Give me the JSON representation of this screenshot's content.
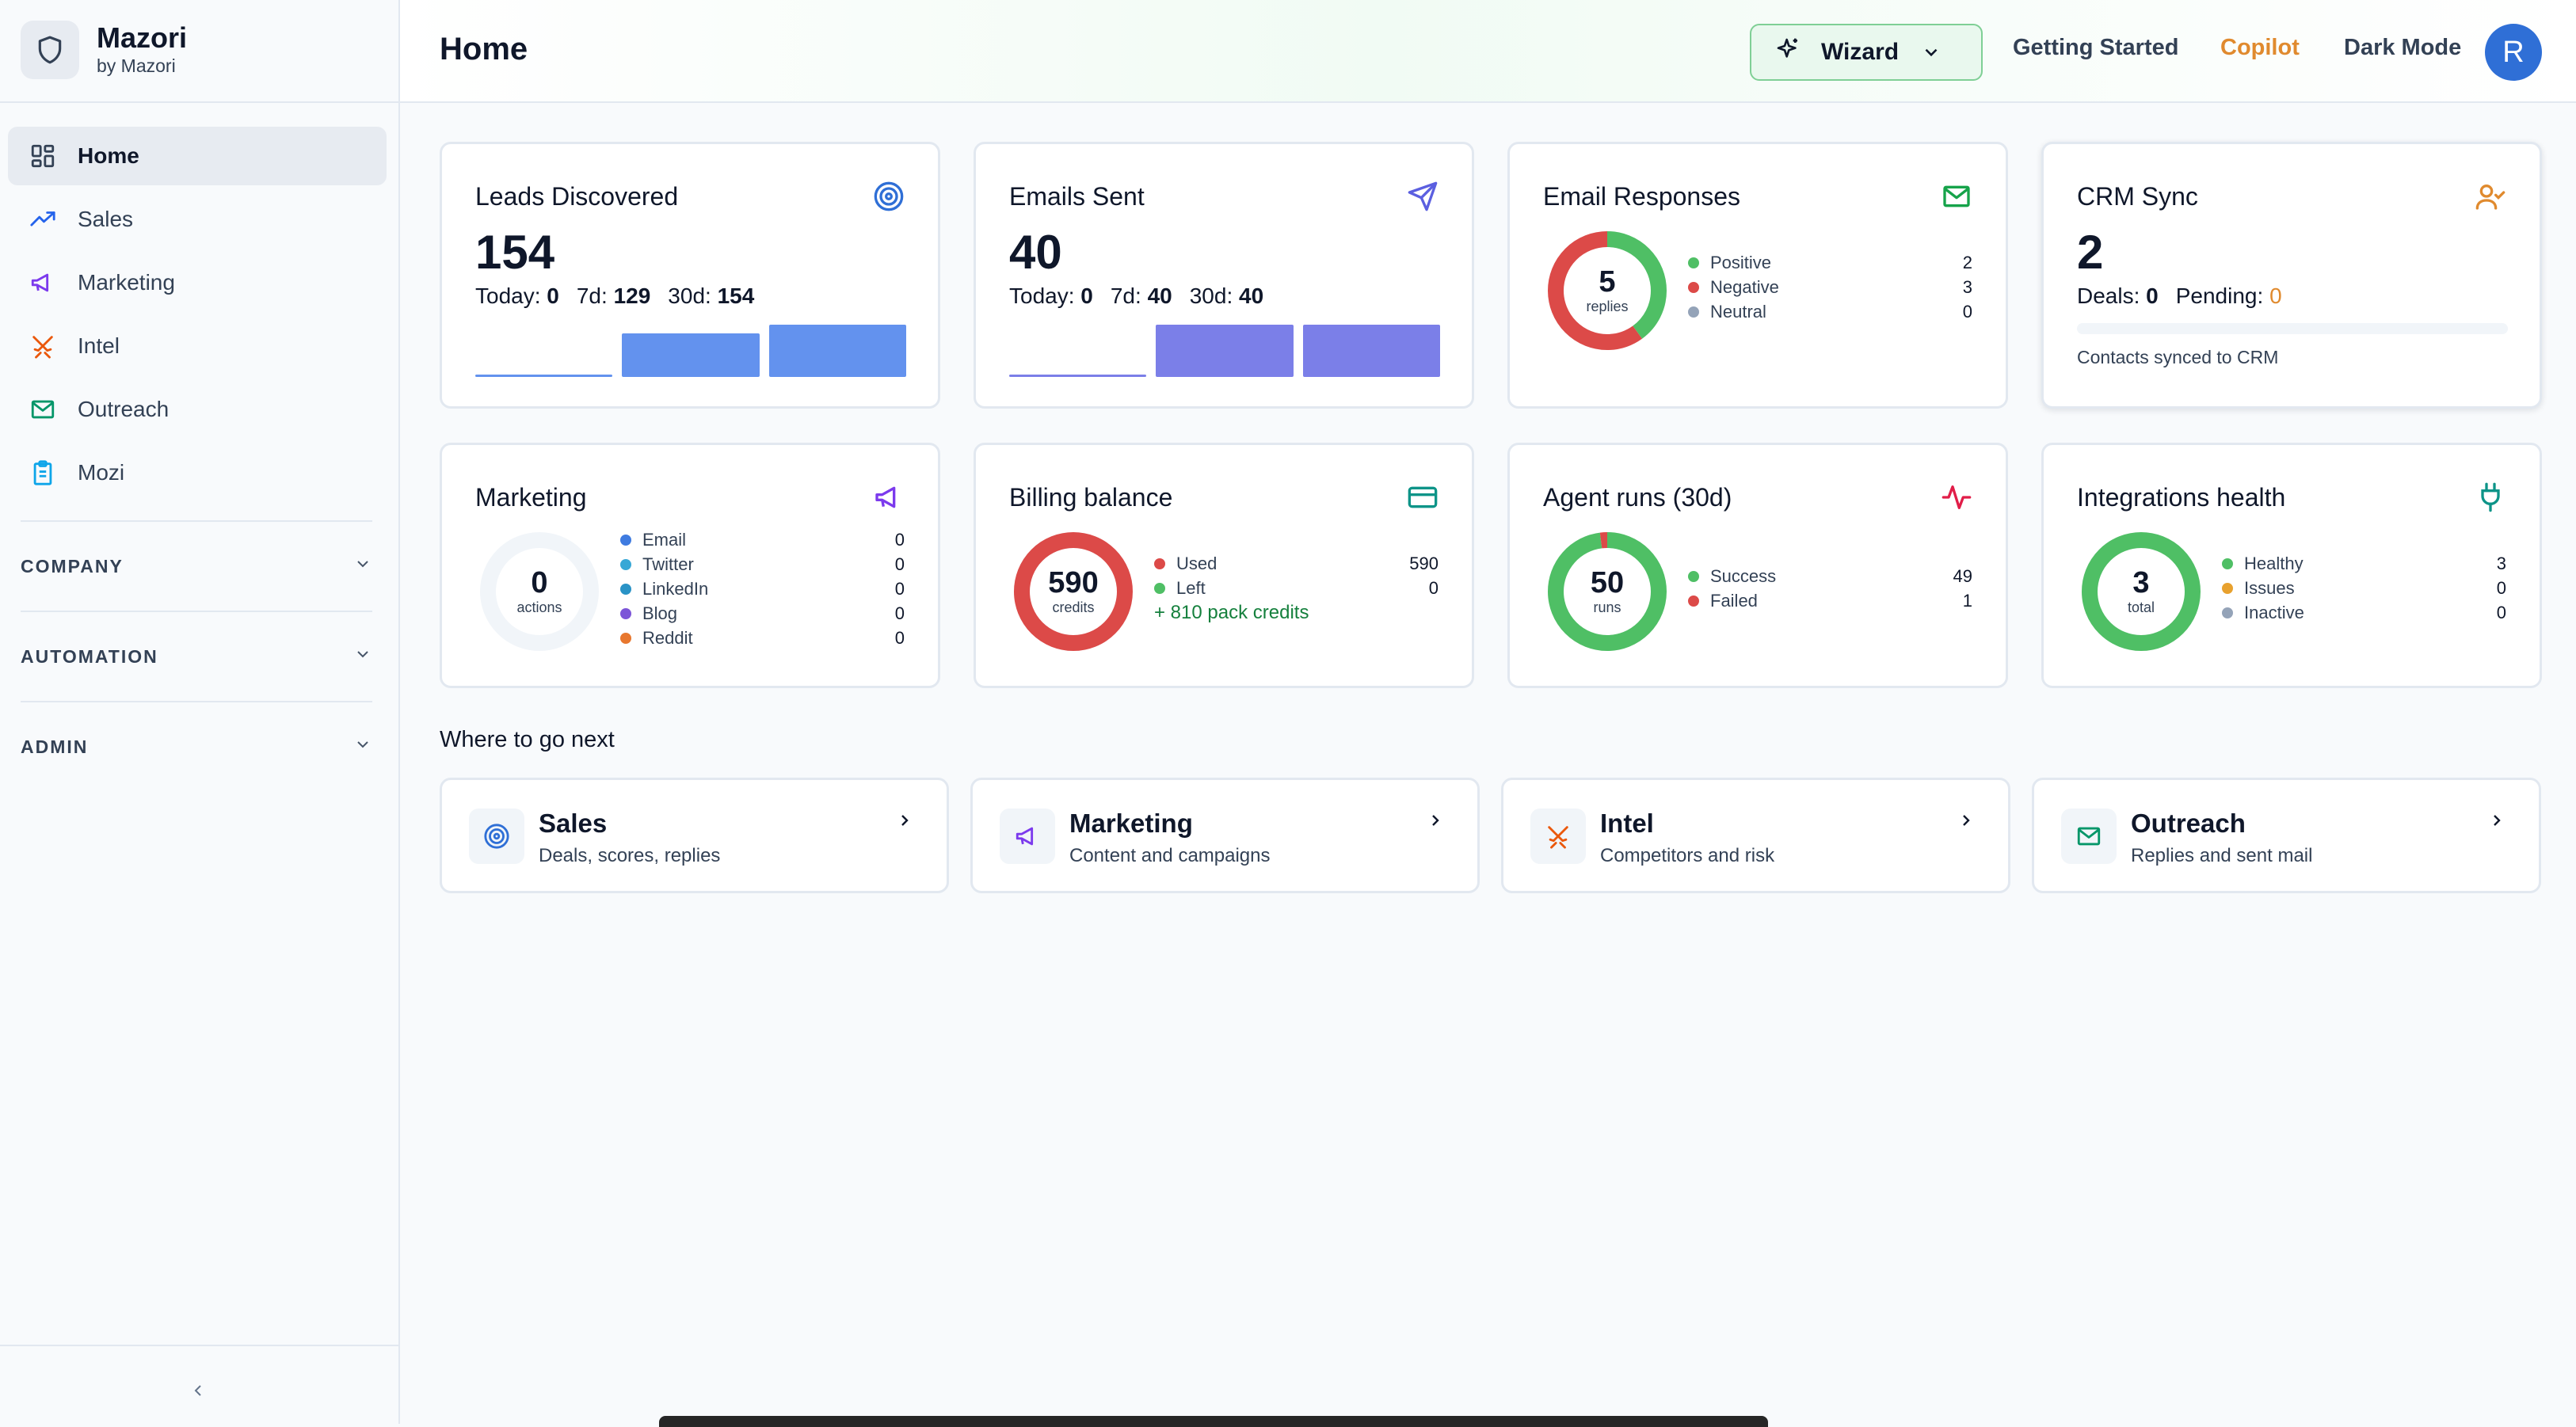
{
  "brand": {
    "name": "Mazori",
    "sub": "by Mazori"
  },
  "sidebar": {
    "items": [
      {
        "label": "Home",
        "icon": "grid-icon",
        "active": true
      },
      {
        "label": "Sales",
        "icon": "trend-up-icon"
      },
      {
        "label": "Marketing",
        "icon": "megaphone-icon"
      },
      {
        "label": "Intel",
        "icon": "swords-icon"
      },
      {
        "label": "Outreach",
        "icon": "mail-icon"
      },
      {
        "label": "Mozi",
        "icon": "clipboard-icon"
      }
    ],
    "sections": [
      "COMPANY",
      "AUTOMATION",
      "ADMIN"
    ]
  },
  "header": {
    "title": "Home",
    "wizard_label": "Wizard",
    "getting_started": "Getting Started",
    "copilot": "Copilot",
    "dark_mode": "Dark Mode",
    "avatar_initial": "R"
  },
  "cards": {
    "leads": {
      "title": "Leads Discovered",
      "value": "154",
      "today_label": "Today:",
      "today": "0",
      "d7_label": "7d:",
      "d7": "129",
      "d30_label": "30d:",
      "d30": "154",
      "bar_values": [
        0,
        129,
        154
      ]
    },
    "emails": {
      "title": "Emails Sent",
      "value": "40",
      "today_label": "Today:",
      "today": "0",
      "d7_label": "7d:",
      "d7": "40",
      "d30_label": "30d:",
      "d30": "40",
      "bar_values": [
        0,
        40,
        40
      ]
    },
    "responses": {
      "title": "Email Responses",
      "center_value": "5",
      "center_label": "replies",
      "legend": [
        {
          "label": "Positive",
          "value": "2",
          "color": "#4fbf65"
        },
        {
          "label": "Negative",
          "value": "3",
          "color": "#dc4a48"
        },
        {
          "label": "Neutral",
          "value": "0",
          "color": "#94a3b8"
        }
      ]
    },
    "crm": {
      "title": "CRM Sync",
      "value": "2",
      "deals_label": "Deals:",
      "deals": "0",
      "pending_label": "Pending:",
      "pending": "0",
      "caption": "Contacts synced to CRM"
    },
    "marketing": {
      "title": "Marketing",
      "center_value": "0",
      "center_label": "actions",
      "legend": [
        {
          "label": "Email",
          "value": "0",
          "color": "#3f7be0"
        },
        {
          "label": "Twitter",
          "value": "0",
          "color": "#38a8d6"
        },
        {
          "label": "LinkedIn",
          "value": "0",
          "color": "#2a93c6"
        },
        {
          "label": "Blog",
          "value": "0",
          "color": "#7c55d8"
        },
        {
          "label": "Reddit",
          "value": "0",
          "color": "#e8772e"
        }
      ]
    },
    "billing": {
      "title": "Billing balance",
      "center_value": "590",
      "center_label": "credits",
      "legend": [
        {
          "label": "Used",
          "value": "590",
          "color": "#dc4a48"
        },
        {
          "label": "Left",
          "value": "0",
          "color": "#4fbf65"
        }
      ],
      "extra": "+ 810 pack credits"
    },
    "agent": {
      "title": "Agent runs (30d)",
      "center_value": "50",
      "center_label": "runs",
      "legend": [
        {
          "label": "Success",
          "value": "49",
          "color": "#4fbf65"
        },
        {
          "label": "Failed",
          "value": "1",
          "color": "#dc4a48"
        }
      ]
    },
    "integrations": {
      "title": "Integrations health",
      "center_value": "3",
      "center_label": "total",
      "legend": [
        {
          "label": "Healthy",
          "value": "3",
          "color": "#4fbf65"
        },
        {
          "label": "Issues",
          "value": "0",
          "color": "#e8a12e"
        },
        {
          "label": "Inactive",
          "value": "0",
          "color": "#94a3b8"
        }
      ]
    }
  },
  "next": {
    "title": "Where to go next",
    "items": [
      {
        "title": "Sales",
        "sub": "Deals, scores, replies",
        "icon": "target-icon"
      },
      {
        "title": "Marketing",
        "sub": "Content and campaigns",
        "icon": "megaphone-icon"
      },
      {
        "title": "Intel",
        "sub": "Competitors and risk",
        "icon": "swords-icon"
      },
      {
        "title": "Outreach",
        "sub": "Replies and sent mail",
        "icon": "mail-icon"
      }
    ]
  },
  "colors": {
    "leads_bar": "#6392ee",
    "emails_bar": "#7b7fe8",
    "green": "#4fbf65",
    "red": "#dc4a48",
    "orange": "#e08a2e"
  }
}
